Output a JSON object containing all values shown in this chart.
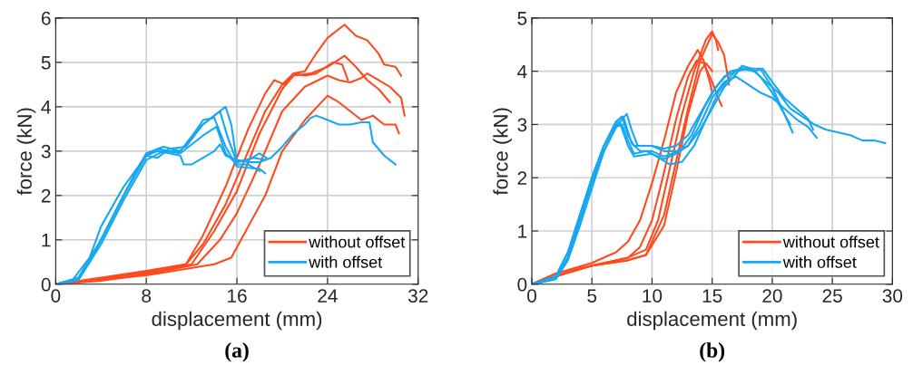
{
  "chart_data": [
    {
      "type": "line",
      "xlabel": "displacement (mm)",
      "ylabel": "force (kN)",
      "annotations": [
        "(a)"
      ],
      "xlim": [
        0,
        32
      ],
      "ylim": [
        0,
        6
      ],
      "xticks": [
        0,
        8,
        16,
        24,
        32
      ],
      "yticks": [
        0,
        1,
        2,
        3,
        4,
        5,
        6
      ],
      "grid": true,
      "legend": "bottom right",
      "series": [
        {
          "name": "without offset",
          "color": "#ff4a1e",
          "x": [
            0,
            4,
            8,
            11.5,
            13,
            15,
            17,
            18.5,
            20,
            21,
            22,
            23,
            24,
            25.5,
            26.5,
            27.5,
            28.5,
            29,
            30,
            30.5
          ],
          "values": [
            0,
            0.15,
            0.3,
            0.45,
            0.9,
            1.8,
            3,
            3.9,
            4.5,
            4.75,
            4.8,
            5.2,
            5.55,
            5.85,
            5.6,
            5.5,
            5.2,
            4.95,
            4.9,
            4.7
          ]
        },
        {
          "color": "#ff4a1e",
          "x": [
            0,
            4,
            8,
            11.5,
            13,
            15,
            17,
            18.5,
            19.3,
            20.2,
            21,
            22,
            23,
            24.5,
            25.3,
            25.8
          ],
          "values": [
            0,
            0.12,
            0.28,
            0.45,
            1.1,
            2.2,
            3.5,
            4.3,
            4.6,
            4.5,
            4.75,
            4.7,
            4.75,
            5.0,
            4.95,
            4.6
          ]
        },
        {
          "color": "#ff4a1e",
          "x": [
            0,
            4,
            8,
            12,
            14,
            16,
            18,
            20,
            21,
            22.5,
            24,
            25.5,
            26.5,
            27.5,
            28.5,
            29.5
          ],
          "values": [
            0,
            0.1,
            0.25,
            0.45,
            1.2,
            2.1,
            3.4,
            4.4,
            4.7,
            4.75,
            4.9,
            5.15,
            4.9,
            4.6,
            4.4,
            4.1
          ]
        },
        {
          "color": "#ff4a1e",
          "x": [
            0,
            4,
            8,
            12.5,
            14.5,
            16,
            18,
            20,
            22,
            24,
            25,
            26,
            27,
            27.5,
            28.5,
            29.5,
            30.5,
            30.8
          ],
          "values": [
            0,
            0.08,
            0.22,
            0.45,
            1.0,
            1.6,
            2.7,
            3.9,
            4.45,
            4.7,
            4.6,
            4.55,
            4.65,
            4.75,
            4.6,
            4.45,
            4.2,
            3.8
          ]
        },
        {
          "color": "#ff4a1e",
          "x": [
            0,
            8,
            14,
            15.5,
            17,
            18.5,
            20,
            22,
            24,
            25,
            26,
            27,
            28,
            29,
            30,
            30.3
          ],
          "values": [
            0,
            0.2,
            0.45,
            0.6,
            1.3,
            2.0,
            3.0,
            3.7,
            4.25,
            4.1,
            3.9,
            3.7,
            3.8,
            3.6,
            3.6,
            3.4
          ]
        },
        {
          "name": "with offset",
          "color": "#16a8f0",
          "x": [
            0,
            1.5,
            3,
            4,
            6,
            8,
            9,
            10,
            11,
            12,
            13,
            14,
            15,
            16,
            18,
            18.5
          ],
          "values": [
            0,
            0.1,
            0.6,
            1.3,
            2.2,
            2.9,
            3.05,
            3.0,
            3.0,
            3.3,
            3.7,
            3.75,
            3.1,
            2.65,
            2.6,
            2.5
          ]
        },
        {
          "color": "#16a8f0",
          "x": [
            0,
            2,
            3,
            5,
            7,
            8,
            9.5,
            11,
            12.5,
            14.5,
            15.2,
            16,
            17.5,
            18.5
          ],
          "values": [
            0,
            0.1,
            0.5,
            1.5,
            2.5,
            2.95,
            3.1,
            3.0,
            3.5,
            3.9,
            3.3,
            2.75,
            2.85,
            2.8
          ]
        },
        {
          "color": "#16a8f0",
          "x": [
            0,
            2,
            4,
            6,
            8,
            9,
            10,
            11.5,
            13,
            15,
            15.5,
            16,
            17,
            18,
            18.6
          ],
          "values": [
            0,
            0.15,
            1.0,
            2.0,
            2.9,
            2.85,
            3.05,
            3.1,
            3.6,
            4.0,
            3.6,
            2.75,
            2.8,
            2.95,
            2.85
          ]
        },
        {
          "color": "#16a8f0",
          "x": [
            0,
            2,
            4,
            6,
            8,
            9.5,
            11,
            13,
            14.2,
            15,
            16,
            17,
            18
          ],
          "values": [
            0,
            0.1,
            0.9,
            1.9,
            2.8,
            3.0,
            2.95,
            3.35,
            3.55,
            2.95,
            2.7,
            2.7,
            2.55
          ]
        },
        {
          "color": "#16a8f0",
          "x": [
            0,
            2,
            4,
            6,
            8,
            9,
            11,
            11.3,
            12,
            14,
            14.5,
            15,
            16,
            17,
            18,
            19,
            20,
            21,
            22,
            22.5,
            23,
            24,
            25,
            26,
            27,
            27.7,
            28,
            29,
            30
          ],
          "values": [
            0,
            0.1,
            1.0,
            2.0,
            2.9,
            3.0,
            2.9,
            2.7,
            2.7,
            3.0,
            3.15,
            2.9,
            2.8,
            2.75,
            2.75,
            2.85,
            3.1,
            3.4,
            3.6,
            3.75,
            3.8,
            3.7,
            3.6,
            3.6,
            3.65,
            3.65,
            3.2,
            2.9,
            2.7
          ]
        }
      ]
    },
    {
      "type": "line",
      "xlabel": "displacement (mm)",
      "ylabel": "force (kN)",
      "annotations": [
        "(b)"
      ],
      "xlim": [
        0,
        30
      ],
      "ylim": [
        0,
        5
      ],
      "xticks": [
        0,
        5,
        10,
        15,
        20,
        25,
        30
      ],
      "yticks": [
        0,
        1,
        2,
        3,
        4,
        5
      ],
      "grid": true,
      "legend": "bottom right",
      "series": [
        {
          "name": "without offset",
          "color": "#ff4a1e",
          "x": [
            0,
            2,
            5,
            7,
            8,
            9,
            10,
            11,
            12,
            13,
            13.8,
            14.3,
            14.8,
            15
          ],
          "values": [
            0,
            0.2,
            0.4,
            0.6,
            0.8,
            1.2,
            1.9,
            2.7,
            3.6,
            4.1,
            4.4,
            4.2,
            3.8,
            3.6
          ]
        },
        {
          "color": "#ff4a1e",
          "x": [
            0,
            2,
            5,
            8,
            9,
            10,
            11,
            12,
            13,
            13.7,
            14.3,
            15,
            15.5,
            15.8
          ],
          "values": [
            0,
            0.2,
            0.35,
            0.5,
            0.7,
            1.2,
            2.1,
            3.1,
            3.9,
            4.2,
            4.15,
            3.8,
            3.5,
            3.35
          ]
        },
        {
          "color": "#ff4a1e",
          "x": [
            0,
            2,
            5,
            8,
            9.5,
            10.5,
            11.5,
            12.5,
            13.5,
            14.5,
            15,
            15.3,
            15.5
          ],
          "values": [
            0,
            0.15,
            0.35,
            0.5,
            0.65,
            1.2,
            2.2,
            3.2,
            4.0,
            4.6,
            4.75,
            4.6,
            4.4
          ]
        },
        {
          "color": "#ff4a1e",
          "x": [
            0,
            2,
            5,
            8,
            9.5,
            11,
            12,
            13,
            14,
            15,
            15.5,
            16,
            16.3,
            16.4
          ],
          "values": [
            0,
            0.15,
            0.35,
            0.45,
            0.55,
            1.3,
            2.3,
            3.3,
            4.2,
            4.7,
            4.55,
            4.3,
            3.9,
            3.75
          ]
        },
        {
          "color": "#ff4a1e",
          "x": [
            0,
            2,
            5,
            8,
            9.5,
            11,
            12,
            13,
            14,
            14.5,
            15
          ],
          "values": [
            0,
            0.15,
            0.35,
            0.45,
            0.55,
            1.1,
            2.1,
            3.2,
            4.0,
            4.15,
            4.0
          ]
        },
        {
          "name": "with offset",
          "color": "#16a8f0",
          "x": [
            0,
            2,
            3,
            4,
            5,
            6,
            7,
            7.5,
            8,
            8.5,
            10,
            11,
            12,
            13,
            14,
            15,
            16,
            17,
            18,
            19,
            20,
            21,
            21.7
          ],
          "values": [
            0,
            0.15,
            0.6,
            1.3,
            2.0,
            2.6,
            3.05,
            3.15,
            2.8,
            2.6,
            2.6,
            2.55,
            2.6,
            2.8,
            3.2,
            3.6,
            3.9,
            4.0,
            4.05,
            4.05,
            3.7,
            3.2,
            2.85
          ]
        },
        {
          "color": "#16a8f0",
          "x": [
            0,
            2,
            3,
            4,
            5,
            6,
            7,
            7.5,
            8,
            8.5,
            9.5,
            11,
            12,
            13,
            14,
            15,
            16,
            17,
            18,
            19,
            20,
            21,
            22,
            23,
            23.7
          ],
          "values": [
            0,
            0.1,
            0.5,
            1.2,
            1.9,
            2.5,
            2.95,
            3.0,
            2.7,
            2.45,
            2.5,
            2.35,
            2.45,
            2.6,
            3.0,
            3.5,
            3.8,
            3.9,
            3.75,
            3.6,
            3.5,
            3.3,
            3.1,
            2.95,
            2.75
          ]
        },
        {
          "color": "#16a8f0",
          "x": [
            0,
            2,
            3,
            4,
            5,
            6,
            7,
            7.3,
            8,
            8.5,
            10,
            11.5,
            12.5,
            13.5,
            14.5,
            15.5,
            16.5,
            17.5,
            18.5,
            19.5,
            20.5,
            21.5,
            22.5,
            23.5,
            24.5,
            25.5,
            26.5,
            27.5,
            28.5,
            29.4
          ],
          "values": [
            0,
            0.1,
            0.5,
            1.2,
            2.0,
            2.6,
            3.0,
            3.05,
            2.6,
            2.4,
            2.45,
            2.25,
            2.3,
            2.6,
            3.1,
            3.6,
            3.9,
            4.1,
            4.0,
            3.8,
            3.6,
            3.3,
            3.15,
            3.0,
            2.9,
            2.85,
            2.8,
            2.7,
            2.7,
            2.65
          ]
        },
        {
          "color": "#16a8f0",
          "x": [
            0,
            2,
            3,
            4,
            5,
            6,
            7,
            7.6,
            8.3,
            9,
            10,
            11,
            12.3,
            13.3,
            14.3,
            15.3,
            16.5,
            17.5,
            18.5,
            19.2,
            20,
            21,
            22,
            23,
            23.4
          ],
          "values": [
            0,
            0.15,
            0.6,
            1.3,
            2.0,
            2.6,
            3.05,
            3.15,
            2.65,
            2.5,
            2.5,
            2.4,
            2.5,
            2.8,
            3.3,
            3.7,
            4.0,
            4.05,
            4.0,
            4.05,
            3.8,
            3.5,
            3.3,
            3.1,
            2.9
          ]
        },
        {
          "color": "#16a8f0",
          "x": [
            0,
            2,
            3,
            4,
            5,
            6,
            7,
            7.9,
            8.3,
            8.8,
            10,
            11,
            12,
            13,
            14,
            15,
            16,
            17,
            17.5,
            18.3,
            19,
            20,
            21,
            21.5
          ],
          "values": [
            0,
            0.1,
            0.45,
            1.1,
            1.8,
            2.5,
            2.95,
            3.2,
            2.9,
            2.6,
            2.6,
            2.5,
            2.5,
            2.6,
            2.9,
            3.3,
            3.7,
            3.95,
            4.1,
            4.05,
            3.9,
            3.6,
            3.2,
            3.0
          ]
        }
      ]
    }
  ]
}
